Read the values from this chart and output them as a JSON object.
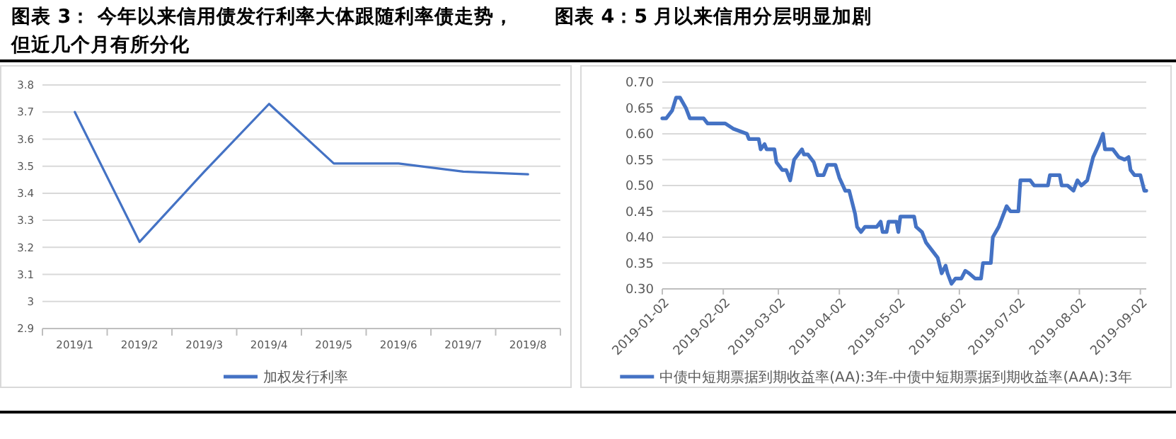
{
  "chart_data": [
    {
      "type": "line",
      "title": "图表 3： 今年以来信用债发行利率大体跟随利率债走势，但近几个月有所分化",
      "categories": [
        "2019/1",
        "2019/2",
        "2019/3",
        "2019/4",
        "2019/5",
        "2019/6",
        "2019/7",
        "2019/8"
      ],
      "series": [
        {
          "name": "加权发行利率",
          "color": "#4472c4",
          "values": [
            3.7,
            3.22,
            3.48,
            3.73,
            3.51,
            3.51,
            3.48,
            3.47
          ]
        }
      ],
      "ylim": [
        2.9,
        3.8
      ],
      "yticks": [
        2.9,
        3,
        3.1,
        3.2,
        3.3,
        3.4,
        3.5,
        3.6,
        3.7,
        3.8
      ],
      "grid": "y",
      "legend": "bottom",
      "marker": "none"
    },
    {
      "type": "line",
      "title": "图表 4：5 月以来信用分层明显加剧",
      "x": [
        "2019-01-02",
        "2019-01-04",
        "2019-01-07",
        "2019-01-09",
        "2019-01-11",
        "2019-01-14",
        "2019-01-16",
        "2019-01-23",
        "2019-01-25",
        "2019-02-03",
        "2019-02-07",
        "2019-02-14",
        "2019-02-15",
        "2019-02-20",
        "2019-02-21",
        "2019-02-23",
        "2019-02-24",
        "2019-02-28",
        "2019-03-01",
        "2019-03-04",
        "2019-03-06",
        "2019-03-08",
        "2019-03-10",
        "2019-03-14",
        "2019-03-15",
        "2019-03-17",
        "2019-03-20",
        "2019-03-22",
        "2019-03-25",
        "2019-03-27",
        "2019-03-31",
        "2019-04-02",
        "2019-04-05",
        "2019-04-07",
        "2019-04-10",
        "2019-04-11",
        "2019-04-13",
        "2019-04-15",
        "2019-04-21",
        "2019-04-23",
        "2019-04-24",
        "2019-04-26",
        "2019-04-27",
        "2019-05-01",
        "2019-05-02",
        "2019-05-03",
        "2019-05-10",
        "2019-05-11",
        "2019-05-14",
        "2019-05-16",
        "2019-05-18",
        "2019-05-22",
        "2019-05-24",
        "2019-05-26",
        "2019-05-27",
        "2019-05-29",
        "2019-05-31",
        "2019-06-03",
        "2019-06-05",
        "2019-06-07",
        "2019-06-10",
        "2019-06-13",
        "2019-06-14",
        "2019-06-18",
        "2019-06-19",
        "2019-06-22",
        "2019-06-24",
        "2019-06-26",
        "2019-06-28",
        "2019-07-02",
        "2019-07-03",
        "2019-07-08",
        "2019-07-10",
        "2019-07-17",
        "2019-07-18",
        "2019-07-23",
        "2019-07-24",
        "2019-07-27",
        "2019-07-30",
        "2019-08-01",
        "2019-08-03",
        "2019-08-06",
        "2019-08-09",
        "2019-08-12",
        "2019-08-14",
        "2019-08-15",
        "2019-08-19",
        "2019-08-22",
        "2019-08-25",
        "2019-08-27",
        "2019-08-28",
        "2019-08-30",
        "2019-09-02",
        "2019-09-04",
        "2019-09-05"
      ],
      "series": [
        {
          "name": "中债中短期票据到期收益率(AA):3年-中债中短期票据到期收益率(AAA):3年",
          "color": "#4472c4",
          "values": [
            0.63,
            0.63,
            0.645,
            0.67,
            0.67,
            0.65,
            0.63,
            0.63,
            0.62,
            0.62,
            0.61,
            0.6,
            0.59,
            0.59,
            0.57,
            0.58,
            0.57,
            0.57,
            0.545,
            0.53,
            0.53,
            0.51,
            0.55,
            0.57,
            0.56,
            0.56,
            0.545,
            0.52,
            0.52,
            0.54,
            0.54,
            0.515,
            0.49,
            0.49,
            0.445,
            0.42,
            0.41,
            0.42,
            0.42,
            0.43,
            0.41,
            0.41,
            0.43,
            0.43,
            0.41,
            0.44,
            0.44,
            0.42,
            0.41,
            0.39,
            0.38,
            0.36,
            0.33,
            0.345,
            0.33,
            0.31,
            0.32,
            0.32,
            0.335,
            0.33,
            0.32,
            0.32,
            0.35,
            0.35,
            0.4,
            0.42,
            0.44,
            0.46,
            0.45,
            0.45,
            0.51,
            0.51,
            0.5,
            0.5,
            0.52,
            0.52,
            0.5,
            0.5,
            0.49,
            0.51,
            0.5,
            0.51,
            0.555,
            0.58,
            0.6,
            0.57,
            0.57,
            0.555,
            0.55,
            0.555,
            0.53,
            0.52,
            0.52,
            0.49,
            0.49
          ]
        }
      ],
      "xlim": [
        "2019-01-02",
        "2019-09-05"
      ],
      "xticks": [
        "2019-01-02",
        "2019-02-02",
        "2019-03-02",
        "2019-04-02",
        "2019-05-02",
        "2019-06-02",
        "2019-07-02",
        "2019-08-02",
        "2019-09-02"
      ],
      "ylim": [
        0.3,
        0.7
      ],
      "yticks": [
        {
          "value": 0.3,
          "label": "0.30"
        },
        {
          "value": 0.35,
          "label": "0.35"
        },
        {
          "value": 0.4,
          "label": "0.40"
        },
        {
          "value": 0.45,
          "label": "0.45"
        },
        {
          "value": 0.5,
          "label": "0.50"
        },
        {
          "value": 0.55,
          "label": "0.55"
        },
        {
          "value": 0.6,
          "label": "0.60"
        },
        {
          "value": 0.65,
          "label": "0.65"
        },
        {
          "value": 0.7,
          "label": "0.70"
        }
      ],
      "grid": "y",
      "legend": "bottom",
      "marker": "none"
    }
  ]
}
